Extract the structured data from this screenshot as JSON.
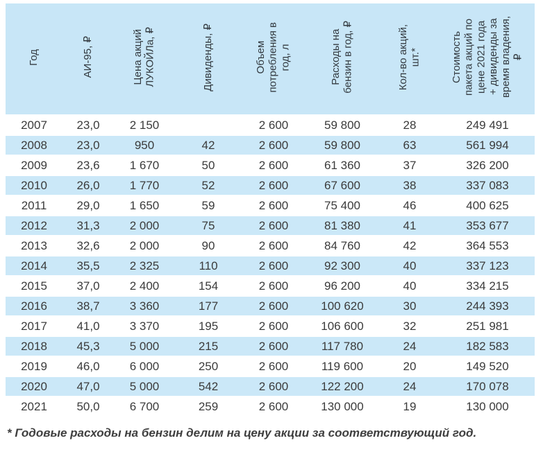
{
  "chart_data": {
    "type": "table",
    "columns": [
      {
        "label": "Год"
      },
      {
        "label": "АИ-95, ₽"
      },
      {
        "label": "Цена акций\nЛУКОЙЛа, ₽"
      },
      {
        "label": "Дивиденды, ₽"
      },
      {
        "label": "Объем\nпотребления в\nгод, л"
      },
      {
        "label": "Расходы на\nбензин в год, ₽"
      },
      {
        "label": "Кол-во акций,\nшт.*"
      },
      {
        "label": "Стоимость\nпакета акций по\nцене 2021 года\n+ дивиденды за\nвремя владения,\n₽"
      }
    ],
    "rows": [
      [
        "2007",
        "23,0",
        "2 150",
        "",
        "2 600",
        "59 800",
        "28",
        "249 491"
      ],
      [
        "2008",
        "23,0",
        "950",
        "42",
        "2 600",
        "59 800",
        "63",
        "561 994"
      ],
      [
        "2009",
        "23,6",
        "1 670",
        "50",
        "2 600",
        "61 360",
        "37",
        "326 200"
      ],
      [
        "2010",
        "26,0",
        "1 770",
        "52",
        "2 600",
        "67 600",
        "38",
        "337 083"
      ],
      [
        "2011",
        "29,0",
        "1 650",
        "59",
        "2 600",
        "75 400",
        "46",
        "400 625"
      ],
      [
        "2012",
        "31,3",
        "2 000",
        "75",
        "2 600",
        "81 380",
        "41",
        "353 677"
      ],
      [
        "2013",
        "32,6",
        "2 000",
        "90",
        "2 600",
        "84 760",
        "42",
        "364 553"
      ],
      [
        "2014",
        "35,5",
        "2 325",
        "110",
        "2 600",
        "92 300",
        "40",
        "337 123"
      ],
      [
        "2015",
        "37,0",
        "2 400",
        "154",
        "2 600",
        "96 200",
        "40",
        "334 215"
      ],
      [
        "2016",
        "38,7",
        "3 360",
        "177",
        "2 600",
        "100 620",
        "30",
        "244 393"
      ],
      [
        "2017",
        "41,0",
        "3 370",
        "195",
        "2 600",
        "106 600",
        "32",
        "251 981"
      ],
      [
        "2018",
        "45,3",
        "5 000",
        "215",
        "2 600",
        "117 780",
        "24",
        "182 583"
      ],
      [
        "2019",
        "46,0",
        "6 000",
        "250",
        "2 600",
        "119 600",
        "20",
        "149 520"
      ],
      [
        "2020",
        "47,0",
        "5 000",
        "542",
        "2 600",
        "122 200",
        "24",
        "170 078"
      ],
      [
        "2021",
        "50,0",
        "6 700",
        "259",
        "2 600",
        "130 000",
        "19",
        "130 000"
      ]
    ],
    "footnote": "* Годовые расходы на бензин делим на цену акции за соответствующий год."
  },
  "colors": {
    "header_bg": "#c8e6f7",
    "row_alt_bg": "#cbe8f8",
    "text": "#3b3b3b"
  }
}
